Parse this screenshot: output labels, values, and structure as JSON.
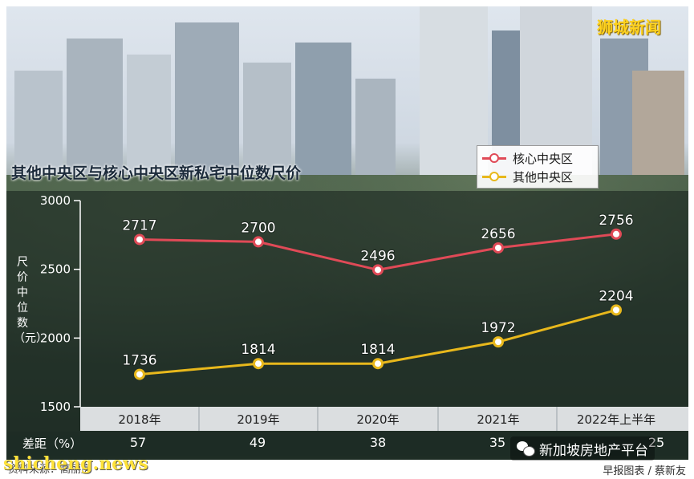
{
  "brand": "狮城新闻",
  "chart_data": {
    "type": "line",
    "title": "其他中央区与核心中央区新私宅中位数尺价",
    "ylabel": "尺价中位数（元）",
    "ylim": [
      1500,
      3000
    ],
    "yticks": [
      1500,
      2000,
      2500,
      3000
    ],
    "categories": [
      "2018年",
      "2019年",
      "2020年",
      "2021年",
      "2022年上半年"
    ],
    "series": [
      {
        "name": "核心中央区",
        "color": "#e04a57",
        "values": [
          2717,
          2700,
          2496,
          2656,
          2756
        ]
      },
      {
        "name": "其他中央区",
        "color": "#e8b81c",
        "values": [
          1736,
          1814,
          1814,
          1972,
          2204
        ]
      }
    ],
    "legend_position": "top-right",
    "grid": false
  },
  "diff_row": {
    "label": "差距（%）",
    "values": [
      "57",
      "49",
      "38",
      "35",
      "25"
    ]
  },
  "footer": {
    "source": "资料来源：高丽房",
    "credit": "早报图表 / 蔡新友"
  },
  "watermark": "shicheng.news",
  "wechat": "新加坡房地产平台"
}
